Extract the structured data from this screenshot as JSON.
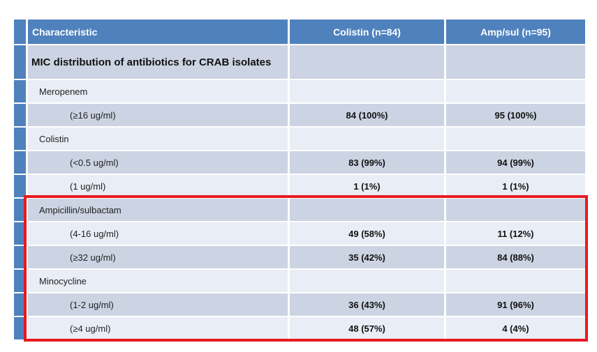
{
  "slide": {
    "background": "#ffffff"
  },
  "colors": {
    "slide_bg": "#ffffff",
    "header_blue": "#4f81bd",
    "accent_strip_blue": "#4f81bd",
    "row_shade_dark": "#ccd4e3",
    "row_shade_light": "#e9edf5",
    "header_text": "#ffffff",
    "body_text": "#1f1f1f",
    "value_text": "#111111",
    "highlight_red": "#e8191f"
  },
  "table": {
    "columns": [
      {
        "key": "characteristic",
        "label": "Characteristic"
      },
      {
        "key": "colistin",
        "label": "Colistin (n=84)"
      },
      {
        "key": "ampsul",
        "label": "Amp/sul (n=95)"
      }
    ],
    "section_title": "MIC distribution of antibiotics for CRAB isolates",
    "rows": [
      {
        "type": "category",
        "label": "Meropenem",
        "colistin": "",
        "ampsul": ""
      },
      {
        "type": "value",
        "label": "(≥16 ug/ml)",
        "colistin": "84 (100%)",
        "ampsul": "95 (100%)"
      },
      {
        "type": "category",
        "label": "Colistin",
        "colistin": "",
        "ampsul": ""
      },
      {
        "type": "value",
        "label": "(<0.5 ug/ml)",
        "colistin": "83 (99%)",
        "ampsul": "94 (99%)"
      },
      {
        "type": "value",
        "label": "(1 ug/ml)",
        "colistin": "1 (1%)",
        "ampsul": "1 (1%)"
      },
      {
        "type": "category",
        "label": "Ampicillin/sulbactam",
        "colistin": "",
        "ampsul": ""
      },
      {
        "type": "value",
        "label": "(4-16 ug/ml)",
        "colistin": "49 (58%)",
        "ampsul": "11 (12%)"
      },
      {
        "type": "value",
        "label": "(≥32 ug/ml)",
        "colistin": "35 (42%)",
        "ampsul": "84 (88%)"
      },
      {
        "type": "category",
        "label": "Minocycline",
        "colistin": "",
        "ampsul": ""
      },
      {
        "type": "value",
        "label": "(1-2 ug/ml)",
        "colistin": "36 (43%)",
        "ampsul": "91 (96%)"
      },
      {
        "type": "value",
        "label": "(≥4 ug/ml)",
        "colistin": "48 (57%)",
        "ampsul": "4 (4%)"
      }
    ]
  },
  "highlight": {
    "color": "#e8191f",
    "covers_rows": [
      "Ampicillin/sulbactam",
      "(4-16 ug/ml)",
      "(≥32 ug/ml)",
      "Minocycline",
      "(1-2 ug/ml)",
      "(≥4 ug/ml)"
    ]
  }
}
